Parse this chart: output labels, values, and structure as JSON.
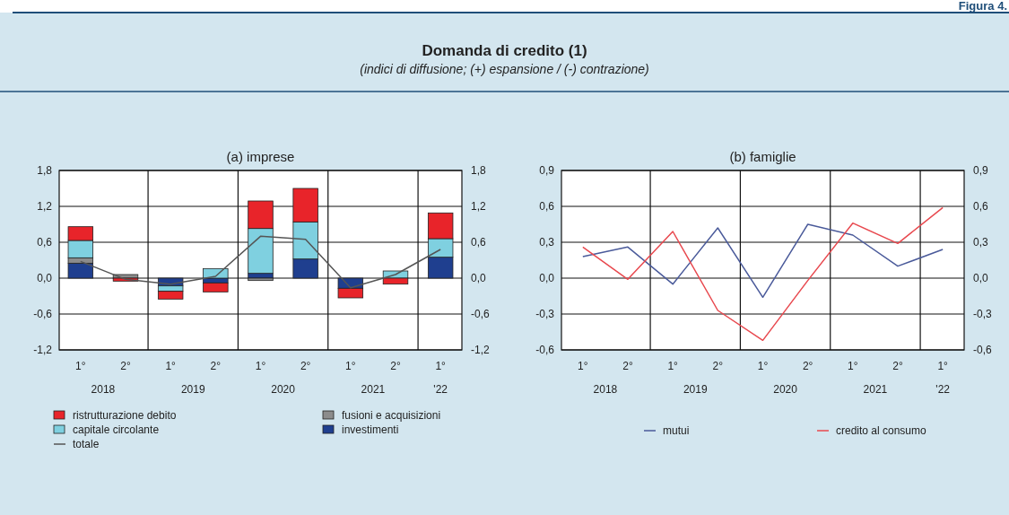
{
  "chart_data": [
    {
      "type": "bar",
      "title": "(a) imprese",
      "stacked": true,
      "categories": [
        "1°",
        "2°",
        "1°",
        "2°",
        "1°",
        "2°",
        "1°",
        "2°",
        "1°"
      ],
      "annotations": [
        "Figura 4.",
        "Domanda di credito (1)",
        "(indici di diffusione; (+) espansione / (-) contrazione)",
        "2018",
        "2019",
        "2020",
        "2021",
        "'22"
      ],
      "ylim": [
        -1.2,
        1.8
      ],
      "yticks": [
        {
          "value": -1.2,
          "label": "-1,2"
        },
        {
          "value": -0.6,
          "label": "-0,6"
        },
        {
          "value": 0,
          "label": "0,0"
        },
        {
          "value": 0.6,
          "label": "0,6"
        },
        {
          "value": 1.2,
          "label": "1,2"
        },
        {
          "value": 1.8,
          "label": "1,8"
        }
      ],
      "y2lim": [
        -1.2,
        1.8
      ],
      "y2ticks": [
        {
          "value": -1.2,
          "label": "-1,2"
        },
        {
          "value": -0.6,
          "label": "-0,6"
        },
        {
          "value": 0,
          "label": "0,0"
        },
        {
          "value": 0.6,
          "label": "0,6"
        },
        {
          "value": 1.2,
          "label": "1,2"
        },
        {
          "value": 1.8,
          "label": "1,8"
        }
      ],
      "grid": true,
      "legend": "bottom",
      "series": [
        {
          "name": "investimenti",
          "color": "#1f3f8f",
          "values": [
            0.25,
            null,
            -0.13,
            -0.08,
            0.08,
            0.32,
            -0.17,
            0,
            0.35
          ]
        },
        {
          "name": "fusioni e acquisizioni",
          "color": "#8c8c8c",
          "values": [
            0.09,
            0.06,
            0,
            0,
            -0.04,
            0,
            0,
            0,
            null
          ]
        },
        {
          "name": "capitale circolante",
          "color": "#7fd0e0",
          "values": [
            0.29,
            0,
            -0.09,
            0.16,
            0.75,
            0.62,
            0,
            0.12,
            0.31
          ]
        },
        {
          "name": "ristrutturazione debito",
          "color": "#e8242a",
          "values": [
            0.23,
            -0.05,
            -0.13,
            -0.15,
            0.46,
            0.56,
            -0.16,
            -0.1,
            0.43
          ]
        },
        {
          "name": "totale",
          "type": "line",
          "color": "#555555",
          "values": [
            0.28,
            -0.02,
            -0.1,
            0.03,
            0.7,
            0.65,
            -0.16,
            0.06,
            0.48
          ]
        }
      ]
    },
    {
      "type": "line",
      "title": "(b) famiglie",
      "categories": [
        "1°",
        "2°",
        "1°",
        "2°",
        "1°",
        "2°",
        "1°",
        "2°",
        "1°"
      ],
      "annotations": [
        "2018",
        "2019",
        "2020",
        "2021",
        "'22"
      ],
      "ylim": [
        -0.6,
        0.9
      ],
      "yticks": [
        {
          "value": -0.6,
          "label": "-0,6"
        },
        {
          "value": -0.3,
          "label": "-0,3"
        },
        {
          "value": 0,
          "label": "0,0"
        },
        {
          "value": 0.3,
          "label": "0,3"
        },
        {
          "value": 0.6,
          "label": "0,6"
        },
        {
          "value": 0.9,
          "label": "0,9"
        }
      ],
      "y2lim": [
        -0.6,
        0.9
      ],
      "y2ticks": [
        {
          "value": -0.6,
          "label": "-0,6"
        },
        {
          "value": -0.3,
          "label": "-0,3"
        },
        {
          "value": 0,
          "label": "0,0"
        },
        {
          "value": 0.3,
          "label": "0,3"
        },
        {
          "value": 0.6,
          "label": "0,6"
        },
        {
          "value": 0.9,
          "label": "0,9"
        }
      ],
      "grid": true,
      "legend": "bottom",
      "series": [
        {
          "name": "mutui",
          "color": "#4a5a9a",
          "values": [
            0.18,
            0.26,
            -0.05,
            0.42,
            -0.16,
            0.45,
            0.36,
            0.1,
            0.24
          ]
        },
        {
          "name": "credito al consumo",
          "color": "#e8484e",
          "values": [
            0.26,
            -0.01,
            0.39,
            -0.27,
            -0.52,
            -0.02,
            0.46,
            0.29,
            0.59
          ]
        }
      ]
    }
  ]
}
